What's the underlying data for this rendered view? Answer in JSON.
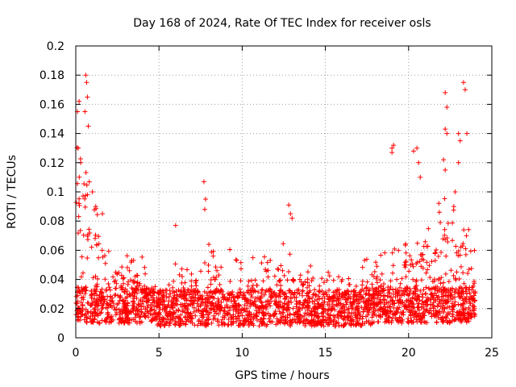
{
  "chart_data": {
    "type": "scatter",
    "title": "Day 168 of 2024, Rate Of TEC Index for receiver osls",
    "xlabel": "GPS time / hours",
    "ylabel": "ROTI / TECUs",
    "xlim": [
      0,
      25
    ],
    "ylim": [
      0,
      0.2
    ],
    "x_ticks": [
      0,
      5,
      10,
      15,
      20,
      25
    ],
    "x_tick_labels": [
      "0",
      "5",
      "10",
      "15",
      "20",
      "25"
    ],
    "y_ticks": [
      0,
      0.02,
      0.04,
      0.06,
      0.08,
      0.1,
      0.12,
      0.14,
      0.16,
      0.18,
      0.2
    ],
    "y_tick_labels": [
      "0",
      "0.02",
      "0.04",
      "0.06",
      "0.08",
      "0.1",
      "0.12",
      "0.14",
      "0.16",
      "0.18",
      "0.2"
    ],
    "grid": true,
    "marker": "+",
    "marker_color": "#ff0000",
    "series": [
      {
        "name": "ROTI",
        "envelope_hours": [
          0,
          0.5,
          1,
          1.5,
          2,
          2.5,
          3,
          3.5,
          4,
          4.5,
          5,
          5.5,
          6,
          6.5,
          7,
          7.5,
          8,
          8.5,
          9,
          9.5,
          10,
          10.5,
          11,
          11.5,
          12,
          12.5,
          13,
          13.5,
          14,
          14.5,
          15,
          15.5,
          16,
          16.5,
          17,
          17.5,
          18,
          18.5,
          19,
          19.5,
          20,
          20.5,
          21,
          21.5,
          22,
          22.5,
          23,
          23.5,
          24
        ],
        "envelope_upper": [
          0.13,
          0.15,
          0.1,
          0.08,
          0.06,
          0.06,
          0.06,
          0.06,
          0.06,
          0.04,
          0.035,
          0.045,
          0.055,
          0.05,
          0.055,
          0.06,
          0.065,
          0.06,
          0.065,
          0.06,
          0.06,
          0.055,
          0.055,
          0.06,
          0.065,
          0.07,
          0.065,
          0.06,
          0.055,
          0.05,
          0.05,
          0.045,
          0.045,
          0.05,
          0.05,
          0.055,
          0.065,
          0.07,
          0.075,
          0.07,
          0.07,
          0.075,
          0.075,
          0.08,
          0.1,
          0.09,
          0.1,
          0.08,
          0.06
        ],
        "envelope_lower": [
          0.01,
          0.01,
          0.01,
          0.01,
          0.01,
          0.01,
          0.01,
          0.01,
          0.01,
          0.01,
          0.008,
          0.008,
          0.008,
          0.008,
          0.008,
          0.008,
          0.008,
          0.008,
          0.008,
          0.008,
          0.008,
          0.008,
          0.008,
          0.008,
          0.008,
          0.008,
          0.008,
          0.008,
          0.008,
          0.008,
          0.008,
          0.008,
          0.008,
          0.008,
          0.008,
          0.008,
          0.01,
          0.01,
          0.01,
          0.01,
          0.01,
          0.01,
          0.01,
          0.01,
          0.01,
          0.01,
          0.01,
          0.01,
          0.01
        ],
        "highlight_points": [
          [
            0.1,
            0.155
          ],
          [
            0.2,
            0.162
          ],
          [
            0.15,
            0.13
          ],
          [
            0.3,
            0.12
          ],
          [
            0.6,
            0.18
          ],
          [
            0.65,
            0.175
          ],
          [
            0.7,
            0.165
          ],
          [
            0.55,
            0.155
          ],
          [
            0.75,
            0.145
          ],
          [
            1.0,
            0.1
          ],
          [
            1.2,
            0.09
          ],
          [
            1.6,
            0.085
          ],
          [
            7.7,
            0.107
          ],
          [
            7.8,
            0.095
          ],
          [
            7.75,
            0.088
          ],
          [
            6.0,
            0.077
          ],
          [
            12.8,
            0.091
          ],
          [
            12.9,
            0.085
          ],
          [
            13.0,
            0.082
          ],
          [
            19.0,
            0.13
          ],
          [
            19.1,
            0.132
          ],
          [
            19.0,
            0.127
          ],
          [
            20.3,
            0.128
          ],
          [
            20.5,
            0.13
          ],
          [
            20.6,
            0.12
          ],
          [
            20.7,
            0.11
          ],
          [
            22.2,
            0.168
          ],
          [
            22.3,
            0.158
          ],
          [
            22.2,
            0.143
          ],
          [
            22.3,
            0.14
          ],
          [
            22.1,
            0.122
          ],
          [
            22.2,
            0.115
          ],
          [
            23.0,
            0.14
          ],
          [
            23.1,
            0.135
          ],
          [
            23.3,
            0.175
          ],
          [
            23.4,
            0.17
          ],
          [
            23.5,
            0.14
          ],
          [
            23.0,
            0.12
          ],
          [
            22.8,
            0.1
          ]
        ]
      }
    ]
  }
}
